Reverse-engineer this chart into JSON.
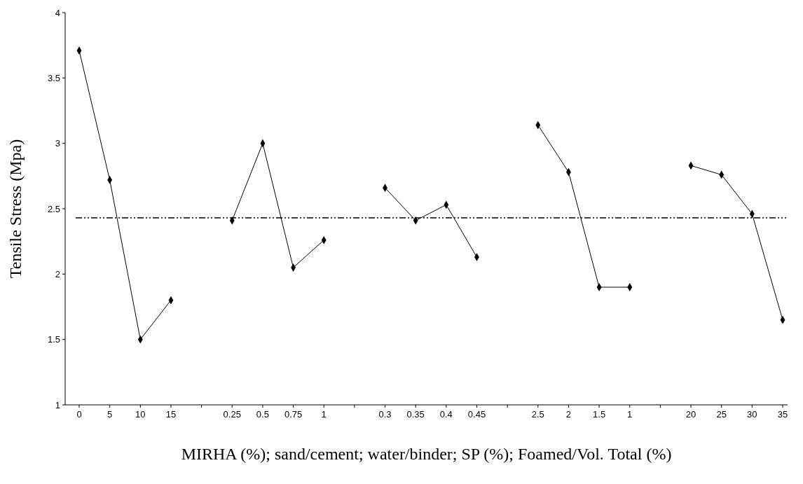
{
  "chart_data": {
    "type": "line",
    "xlabel": "MIRHA (%); sand/cement; water/binder; SP (%); Foamed/Vol. Total (%)",
    "ylabel": "Tensile Stress (Mpa)",
    "categories": [
      "0",
      "5",
      "10",
      "15",
      null,
      "0.25",
      "0.5",
      "0.75",
      "1",
      null,
      "0.3",
      "0.35",
      "0.4",
      "0.45",
      null,
      "2.5",
      "2",
      "1.5",
      "1",
      null,
      "20",
      "25",
      "30",
      "35"
    ],
    "series": [
      {
        "color": "#000000",
        "values": [
          3.71,
          2.72,
          1.5,
          1.8,
          null,
          2.41,
          3.0,
          2.05,
          2.26,
          null,
          2.66,
          2.41,
          2.53,
          2.13,
          null,
          3.14,
          2.78,
          1.9,
          1.9,
          null,
          2.83,
          2.76,
          2.46,
          1.65
        ]
      }
    ],
    "ylim": [
      1,
      4
    ],
    "yticks": [
      1,
      1.5,
      2,
      2.5,
      3,
      3.5,
      4
    ],
    "grid": false,
    "marker": "diamond",
    "line_style": "solid",
    "ref_lines": [
      {
        "axis": "y",
        "value": 2.43,
        "color": "#000000",
        "line_style": "dashed"
      }
    ]
  }
}
